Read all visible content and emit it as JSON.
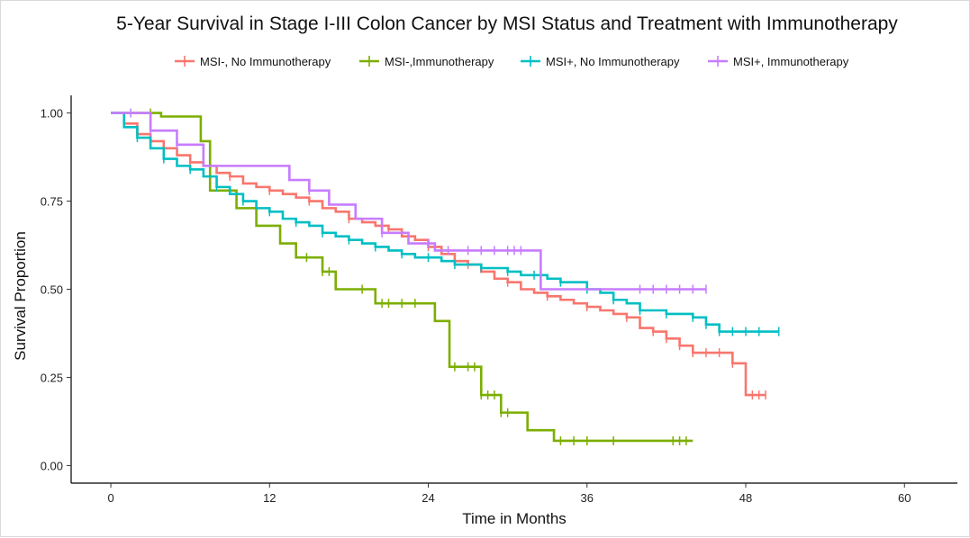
{
  "chart_data": {
    "type": "line",
    "title": "5-Year Survival in Stage I-III Colon Cancer by MSI Status and Treatment with Immunotherapy",
    "xlabel": "Time in Months",
    "ylabel": "Survival Proportion",
    "xlim": [
      -3,
      64
    ],
    "ylim": [
      -0.05,
      1.05
    ],
    "x_ticks": [
      0,
      12,
      24,
      36,
      48,
      60
    ],
    "y_ticks": [
      0.0,
      0.25,
      0.5,
      0.75,
      1.0
    ],
    "x_tick_labels": [
      "0",
      "12",
      "24",
      "36",
      "48",
      "60"
    ],
    "y_tick_labels": [
      "0.00",
      "0.25",
      "0.50",
      "0.75",
      "1.00"
    ],
    "grid": false,
    "legend_position": "top",
    "series": [
      {
        "name": "MSI-, No Immunotherapy",
        "color": "#F8766D",
        "x": [
          0,
          1,
          2,
          3,
          4,
          5,
          6,
          7,
          8,
          9,
          10,
          11,
          12,
          13,
          14,
          15,
          16,
          17,
          18,
          19,
          20,
          21,
          22,
          23,
          24,
          25,
          26,
          27,
          28,
          29,
          30,
          31,
          32,
          33,
          34,
          35,
          36,
          37,
          38,
          39,
          40,
          41,
          42,
          43,
          44,
          45,
          46,
          47,
          48,
          49.5
        ],
        "y": [
          1.0,
          0.97,
          0.94,
          0.92,
          0.9,
          0.88,
          0.86,
          0.85,
          0.83,
          0.82,
          0.8,
          0.79,
          0.78,
          0.77,
          0.76,
          0.75,
          0.73,
          0.72,
          0.7,
          0.69,
          0.68,
          0.67,
          0.65,
          0.64,
          0.62,
          0.6,
          0.58,
          0.57,
          0.55,
          0.53,
          0.52,
          0.5,
          0.49,
          0.48,
          0.47,
          0.46,
          0.45,
          0.44,
          0.43,
          0.42,
          0.39,
          0.38,
          0.36,
          0.34,
          0.32,
          0.32,
          0.32,
          0.29,
          0.2,
          0.2
        ],
        "censor_x": [
          3,
          6,
          9,
          12,
          15,
          18,
          21,
          24,
          27,
          30,
          33,
          36,
          39,
          41,
          42,
          43,
          44,
          45,
          46,
          47,
          48.5,
          49,
          49.5
        ]
      },
      {
        "name": "MSI-,Immunotherapy",
        "color": "#7CAE00",
        "x": [
          0,
          3.8,
          6.8,
          7.5,
          9.5,
          11,
          12.8,
          14,
          16,
          17,
          20,
          24.5,
          25.6,
          28,
          29.5,
          31.5,
          33.5,
          44
        ],
        "y": [
          1.0,
          0.99,
          0.92,
          0.78,
          0.73,
          0.68,
          0.63,
          0.59,
          0.55,
          0.5,
          0.46,
          0.41,
          0.28,
          0.2,
          0.15,
          0.1,
          0.07,
          0.07
        ],
        "censor_x": [
          3,
          14.8,
          16,
          16.5,
          19,
          20.5,
          21,
          22,
          23,
          26,
          27,
          27.5,
          28,
          28.5,
          29,
          29.5,
          30,
          34,
          35,
          36,
          38,
          42.5,
          43,
          43.5
        ]
      },
      {
        "name": "MSI+, No Immunotherapy",
        "color": "#00BFC4",
        "x": [
          0,
          1,
          2,
          3,
          4,
          5,
          6,
          7,
          8,
          9,
          10,
          11,
          12,
          13,
          14,
          15,
          16,
          17,
          18,
          19,
          20,
          21,
          22,
          23,
          24,
          25,
          26,
          27,
          28,
          29,
          30,
          31,
          32,
          33,
          34,
          35,
          36,
          37,
          38,
          39,
          40,
          41,
          42,
          43,
          44,
          45,
          46,
          47,
          48,
          49,
          50.5
        ],
        "y": [
          1.0,
          0.96,
          0.93,
          0.9,
          0.87,
          0.85,
          0.84,
          0.82,
          0.79,
          0.77,
          0.75,
          0.73,
          0.72,
          0.7,
          0.69,
          0.68,
          0.66,
          0.65,
          0.64,
          0.63,
          0.62,
          0.61,
          0.6,
          0.59,
          0.59,
          0.58,
          0.57,
          0.57,
          0.56,
          0.56,
          0.55,
          0.54,
          0.54,
          0.53,
          0.52,
          0.52,
          0.5,
          0.49,
          0.47,
          0.46,
          0.44,
          0.44,
          0.43,
          0.43,
          0.42,
          0.4,
          0.38,
          0.38,
          0.38,
          0.38,
          0.38
        ],
        "censor_x": [
          2,
          4,
          6,
          8,
          10,
          12,
          14,
          16,
          18,
          20,
          22,
          24,
          26,
          28,
          30,
          32,
          34,
          36,
          38,
          40,
          42,
          44,
          45,
          46,
          47,
          48,
          49,
          50.5
        ]
      },
      {
        "name": "MSI+, Immunotherapy",
        "color": "#C77CFF",
        "x": [
          0,
          1.5,
          3,
          5,
          7,
          11.8,
          13.5,
          15,
          16.5,
          18.5,
          20.5,
          22.5,
          24.5,
          31,
          32.5,
          45
        ],
        "y": [
          1.0,
          1.0,
          0.95,
          0.91,
          0.85,
          0.85,
          0.81,
          0.78,
          0.74,
          0.7,
          0.66,
          0.63,
          0.61,
          0.61,
          0.5,
          0.5
        ],
        "censor_x": [
          1.5,
          3,
          5,
          15,
          20.5,
          24,
          25.5,
          27,
          28,
          29,
          30,
          30.5,
          31,
          40,
          41,
          42,
          43,
          44,
          45
        ]
      }
    ]
  }
}
